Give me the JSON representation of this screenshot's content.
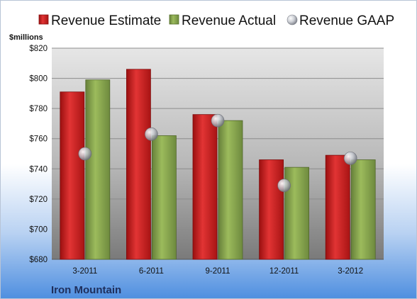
{
  "chart_data": {
    "type": "bar",
    "title": "",
    "ylabel": "$millions",
    "xlabel": "",
    "company": "Iron Mountain",
    "categories": [
      "3-2011",
      "6-2011",
      "9-2011",
      "12-2011",
      "3-2012"
    ],
    "series": [
      {
        "name": "Revenue Estimate",
        "type": "bar",
        "color": "#cc2020",
        "values": [
          791,
          806,
          776,
          746,
          749
        ]
      },
      {
        "name": "Revenue Actual",
        "type": "bar",
        "color": "#8aa84a",
        "values": [
          799,
          762,
          772,
          741,
          746
        ]
      },
      {
        "name": "Revenue GAAP",
        "type": "marker",
        "color": "#c9ccd4",
        "values": [
          750,
          763,
          772,
          729,
          747
        ]
      }
    ],
    "ylim": [
      680,
      820
    ],
    "yticks": [
      680,
      700,
      720,
      740,
      760,
      780,
      800,
      820
    ],
    "ytick_labels": [
      "$680",
      "$700",
      "$720",
      "$740",
      "$760",
      "$780",
      "$800",
      "$820"
    ],
    "grid": true,
    "legend_position": "top"
  }
}
